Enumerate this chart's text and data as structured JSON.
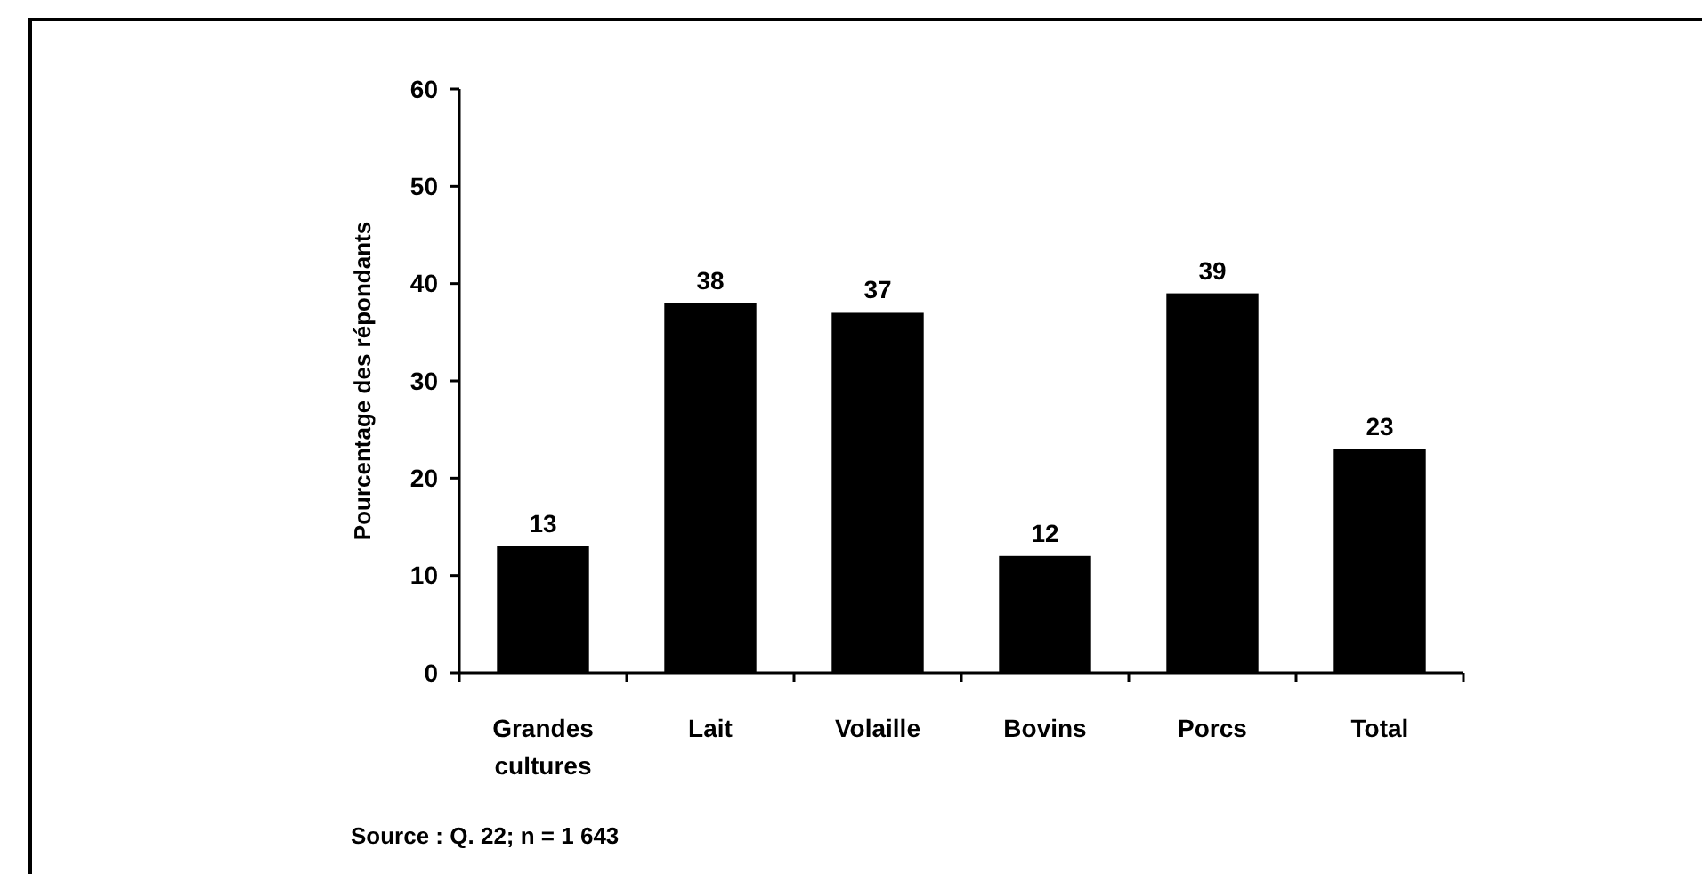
{
  "chart_data": {
    "type": "bar",
    "ylabel": "Pourcentage des répondants",
    "categories": [
      "Grandes cultures",
      "Lait",
      "Volaille",
      "Bovins",
      "Porcs",
      "Total"
    ],
    "values": [
      13,
      38,
      37,
      12,
      39,
      23
    ],
    "color": "#000000",
    "data_labels": true,
    "ylim": [
      0,
      60
    ],
    "yticks": [
      0,
      10,
      20,
      30,
      40,
      50,
      60
    ],
    "grid": false,
    "annotations": [
      "Source : Q. 22; n = 1 643"
    ]
  }
}
